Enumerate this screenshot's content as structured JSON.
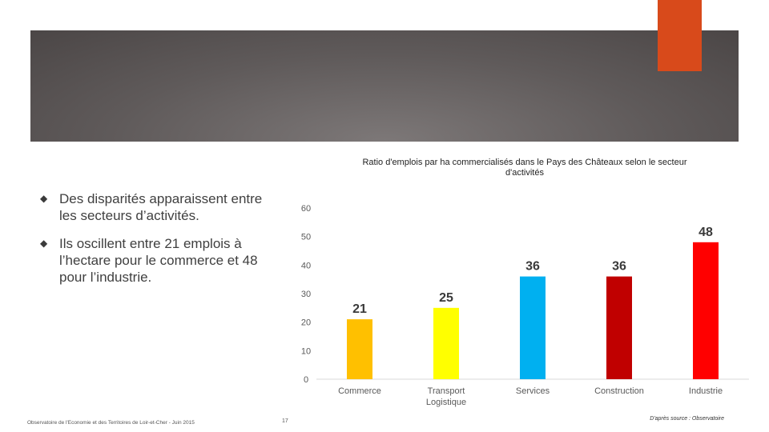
{
  "colors": {
    "header_band": "#6e6969",
    "accent": "#d84a1b"
  },
  "bullets": [
    "Des disparités apparaissent entre les secteurs d’activités.",
    "Ils oscillent entre 21 emplois à l’hectare pour le commerce et 48 pour l’industrie."
  ],
  "bullet_icon": "diamond-icon",
  "footer": {
    "left": "Observatoire de l'Economie et des Territoires de Loir-et-Cher - Juin 2015",
    "page": "17",
    "right": "D'après source : Observatoire"
  },
  "chart_data": {
    "type": "bar",
    "title": "Ratio d'emplois par ha commercialisés dans le Pays des Châteaux selon le secteur d'activités",
    "categories": [
      "Commerce",
      "Transport Logistique",
      "Services",
      "Construction",
      "Industrie"
    ],
    "category_lines": [
      [
        "Commerce"
      ],
      [
        "Transport",
        "Logistique"
      ],
      [
        "Services"
      ],
      [
        "Construction"
      ],
      [
        "Industrie"
      ]
    ],
    "values": [
      21,
      25,
      36,
      36,
      48
    ],
    "data_labels": [
      "21",
      "25",
      "36",
      "36",
      "48"
    ],
    "colors": [
      "#ffc000",
      "#ffff00",
      "#00b0f0",
      "#c00000",
      "#ff0000"
    ],
    "ylim": [
      0,
      60
    ],
    "yticks": [
      0,
      10,
      20,
      30,
      40,
      50,
      60
    ],
    "xlabel": "",
    "ylabel": "",
    "grid": false
  }
}
